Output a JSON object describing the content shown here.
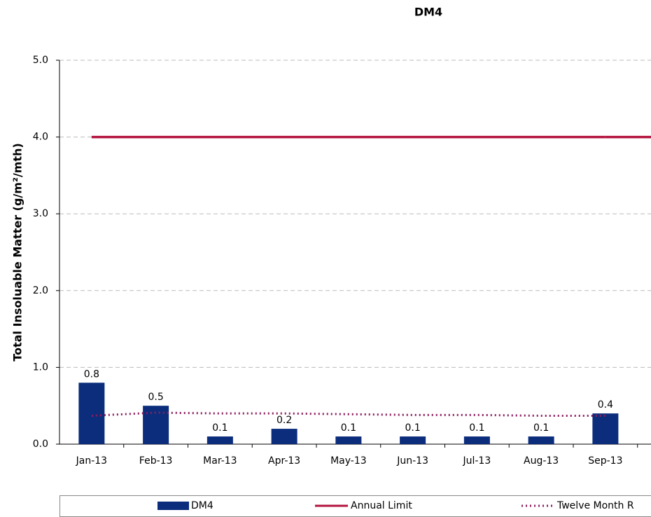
{
  "chart_data": {
    "type": "bar",
    "title": "DM4",
    "y_label": "Total Insoluable Matter (g/m²/mth)",
    "categories": [
      "Jan-13",
      "Feb-13",
      "Mar-13",
      "Apr-13",
      "May-13",
      "Jun-13",
      "Jul-13",
      "Aug-13",
      "Sep-13"
    ],
    "series": [
      {
        "name": "DM4",
        "type": "bar",
        "color": "#0b2d7c",
        "values": [
          0.8,
          0.5,
          0.1,
          0.2,
          0.1,
          0.1,
          0.1,
          0.1,
          0.4
        ]
      },
      {
        "name": "Annual Limit",
        "type": "line",
        "color": "#b3143f",
        "values": [
          4,
          4,
          4,
          4,
          4,
          4,
          4,
          4,
          4
        ]
      },
      {
        "name": "Twelve Month R",
        "type": "dotted",
        "color": "#8e1d5e",
        "values": [
          0.37,
          0.41,
          0.4,
          0.4,
          0.39,
          0.38,
          0.38,
          0.37,
          0.37
        ]
      }
    ],
    "ylim": [
      0,
      5
    ],
    "yticks": [
      {
        "value": 0,
        "label": "0.0"
      },
      {
        "value": 1,
        "label": "1.0"
      },
      {
        "value": 2,
        "label": "2.0"
      },
      {
        "value": 3,
        "label": "3.0"
      },
      {
        "value": 4,
        "label": "4.0"
      },
      {
        "value": 5,
        "label": "5.0"
      }
    ],
    "grid": true
  }
}
